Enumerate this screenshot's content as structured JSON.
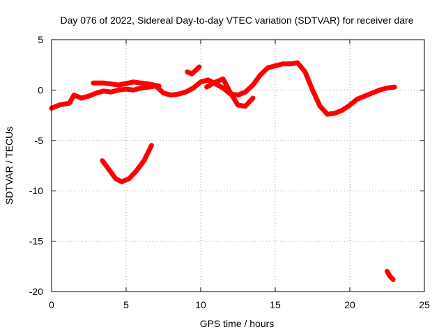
{
  "chart_data": {
    "type": "line",
    "title": "Day 076 of 2022, Sidereal Day-to-day VTEC variation (SDTVAR) for receiver dare",
    "xlabel": "GPS time / hours",
    "ylabel": "SDTVAR / TECUs",
    "xlim": [
      0,
      25
    ],
    "ylim": [
      -20,
      5
    ],
    "xticks": [
      0,
      5,
      10,
      15,
      20,
      25
    ],
    "yticks": [
      -20,
      -15,
      -10,
      -5,
      0,
      5
    ],
    "grid": true,
    "color": "#ff0000",
    "series": [
      {
        "name": "main-track",
        "x": [
          0.0,
          0.5,
          1.2,
          1.5,
          2.0,
          2.5,
          3.0,
          3.5,
          4.0,
          4.5,
          5.0,
          5.5,
          6.0,
          6.5,
          7.0,
          7.5,
          8.0,
          8.5,
          9.0,
          9.5,
          10.0,
          10.5,
          11.0,
          11.5,
          12.0,
          12.5,
          13.0,
          13.5,
          14.0,
          14.5,
          15.0,
          15.5,
          16.0,
          16.5,
          17.0,
          17.5,
          18.0,
          18.5,
          19.0,
          19.5,
          20.0,
          20.5,
          21.0,
          21.5,
          22.0,
          22.5,
          23.0
        ],
        "y": [
          -1.8,
          -1.5,
          -1.3,
          -0.5,
          -0.8,
          -0.6,
          -0.3,
          -0.1,
          -0.2,
          0.0,
          0.1,
          0.0,
          0.2,
          0.3,
          0.4,
          -0.3,
          -0.5,
          -0.4,
          -0.2,
          0.2,
          0.8,
          1.0,
          0.6,
          0.2,
          -0.4,
          -0.5,
          -0.2,
          0.5,
          1.5,
          2.2,
          2.4,
          2.6,
          2.6,
          2.7,
          1.8,
          0.0,
          -1.6,
          -2.4,
          -2.3,
          -2.0,
          -1.5,
          -0.9,
          -0.6,
          -0.3,
          0.0,
          0.2,
          0.3
        ]
      },
      {
        "name": "upper-arc",
        "x": [
          2.8,
          3.5,
          4.5,
          5.5,
          6.5,
          7.2
        ],
        "y": [
          0.7,
          0.7,
          0.5,
          0.8,
          0.6,
          0.4
        ]
      },
      {
        "name": "lower-curve",
        "x": [
          3.4,
          3.9,
          4.3,
          4.7,
          5.2,
          5.7,
          6.2,
          6.7
        ],
        "y": [
          -7.0,
          -8.0,
          -8.8,
          -9.1,
          -8.8,
          -8.0,
          -7.0,
          -5.5
        ]
      },
      {
        "name": "high-fragment",
        "x": [
          9.1,
          9.4,
          9.7,
          9.9
        ],
        "y": [
          1.8,
          1.6,
          2.0,
          2.3
        ]
      },
      {
        "name": "mid-loop",
        "x": [
          10.4,
          11.0,
          11.5,
          12.0,
          12.5,
          13.0,
          13.5
        ],
        "y": [
          0.3,
          0.8,
          1.1,
          -0.3,
          -1.5,
          -1.6,
          -0.8
        ]
      },
      {
        "name": "low-fragment",
        "x": [
          22.5,
          22.7,
          22.9
        ],
        "y": [
          -18.0,
          -18.5,
          -18.8
        ]
      }
    ]
  }
}
